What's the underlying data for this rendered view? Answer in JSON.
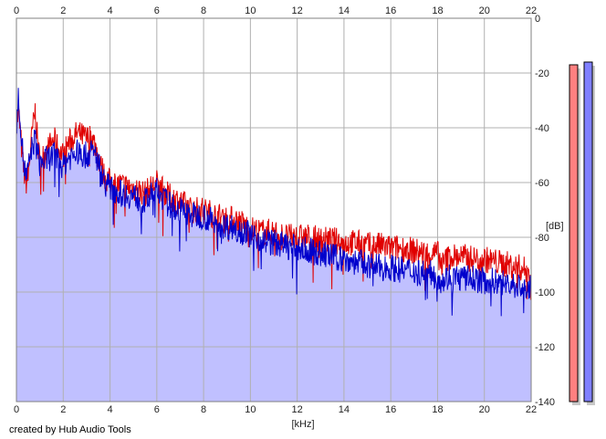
{
  "app": {
    "credit": "created by Hub Audio Tools"
  },
  "chart_data": {
    "type": "line",
    "xlabel": "[kHz]",
    "ylabel": "[dB]",
    "xlim": [
      0,
      22
    ],
    "ylim": [
      -140,
      0
    ],
    "x_ticks": [
      0,
      2,
      4,
      6,
      8,
      10,
      12,
      14,
      16,
      18,
      20,
      22
    ],
    "y_ticks": [
      0,
      -20,
      -40,
      -60,
      -80,
      -100,
      -120,
      -140
    ],
    "grid": true,
    "series": [
      {
        "color": "#e00000",
        "x": [
          0,
          0.1,
          0.2,
          0.3,
          0.4,
          0.5,
          0.6,
          0.7,
          0.8,
          0.9,
          1.0,
          1.2,
          1.4,
          1.6,
          1.8,
          2.0,
          2.2,
          2.4,
          2.6,
          2.8,
          3.0,
          3.2,
          3.4,
          3.6,
          3.8,
          4.0,
          4.5,
          5.0,
          5.5,
          6.0,
          6.5,
          7.0,
          7.5,
          8.0,
          8.5,
          9.0,
          9.5,
          10.0,
          10.5,
          11.0,
          11.5,
          12.0,
          12.5,
          13.0,
          13.5,
          14.0,
          14.5,
          15.0,
          15.5,
          16.0,
          16.5,
          17.0,
          17.5,
          18.0,
          18.2,
          18.5,
          19.0,
          19.5,
          20.0,
          20.5,
          21.0,
          21.5,
          22.0
        ],
        "y": [
          -38,
          -35,
          -45,
          -55,
          -60,
          -58,
          -48,
          -40,
          -34,
          -45,
          -52,
          -50,
          -47,
          -44,
          -48,
          -50,
          -46,
          -44,
          -42,
          -43,
          -44,
          -43,
          -47,
          -54,
          -58,
          -60,
          -61,
          -62,
          -64,
          -60,
          -65,
          -67,
          -70,
          -70,
          -72,
          -73,
          -74,
          -77,
          -78,
          -78,
          -80,
          -80,
          -80,
          -81,
          -81,
          -82,
          -82,
          -83,
          -83,
          -84,
          -84,
          -85,
          -86,
          -86,
          -90,
          -87,
          -87,
          -88,
          -88,
          -89,
          -90,
          -91,
          -93
        ]
      },
      {
        "color": "#0000cc",
        "fill": "#c0c0ff",
        "x": [
          0,
          0.1,
          0.2,
          0.3,
          0.4,
          0.5,
          0.6,
          0.7,
          0.8,
          0.9,
          1.0,
          1.2,
          1.4,
          1.6,
          1.8,
          2.0,
          2.2,
          2.4,
          2.6,
          2.8,
          3.0,
          3.2,
          3.4,
          3.6,
          3.8,
          4.0,
          4.5,
          5.0,
          5.5,
          6.0,
          6.5,
          7.0,
          7.5,
          8.0,
          8.5,
          9.0,
          9.5,
          10.0,
          10.5,
          11.0,
          11.5,
          12.0,
          12.5,
          13.0,
          13.5,
          14.0,
          14.5,
          15.0,
          15.5,
          16.0,
          16.5,
          17.0,
          17.5,
          18.0,
          18.2,
          18.5,
          19.0,
          19.5,
          20.0,
          20.5,
          21.0,
          21.5,
          22.0
        ],
        "y": [
          -40,
          -28,
          -42,
          -52,
          -58,
          -56,
          -50,
          -46,
          -44,
          -49,
          -53,
          -52,
          -51,
          -50,
          -52,
          -54,
          -51,
          -50,
          -49,
          -50,
          -50,
          -49,
          -50,
          -56,
          -60,
          -62,
          -64,
          -65,
          -67,
          -63,
          -68,
          -70,
          -72,
          -72,
          -75,
          -76,
          -77,
          -79,
          -81,
          -82,
          -83,
          -84,
          -85,
          -86,
          -87,
          -88,
          -89,
          -90,
          -91,
          -91,
          -92,
          -92,
          -93,
          -94,
          -96,
          -94,
          -95,
          -95,
          -96,
          -96,
          -97,
          -98,
          -99
        ]
      }
    ],
    "level_meters": [
      {
        "color": "#ff8080",
        "level_db": -17
      },
      {
        "color": "#8080ff",
        "level_db": -16
      }
    ]
  }
}
